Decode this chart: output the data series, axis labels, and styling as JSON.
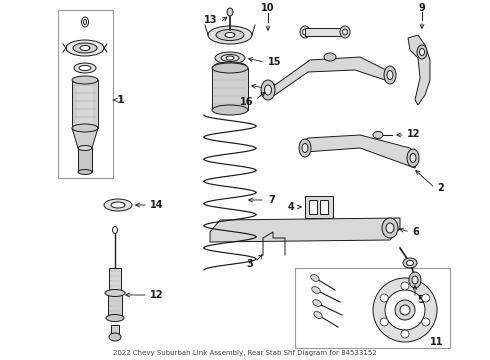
{
  "title": "2022 Chevy Suburban Link Assembly, Rear Stab Shf Diagram for 84533152",
  "bg_color": "#ffffff",
  "line_color": "#1a1a1a",
  "fig_w": 4.9,
  "fig_h": 3.6,
  "dpi": 100
}
